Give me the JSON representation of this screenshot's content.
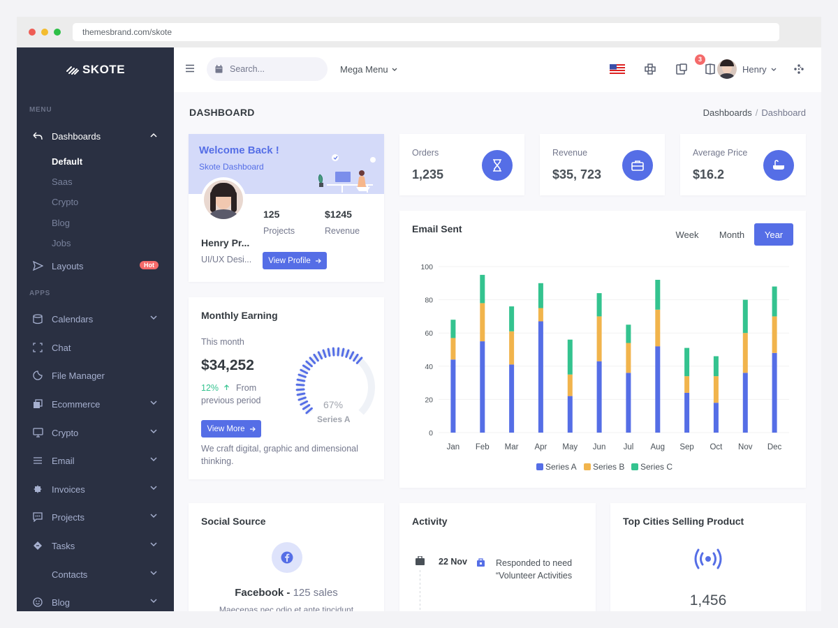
{
  "browser": {
    "url": "themesbrand.com/skote"
  },
  "brand": {
    "name": "SKOTE"
  },
  "sidebar": {
    "menu_title": "MENU",
    "apps_title": "APPS",
    "dashboards": {
      "label": "Dashboards",
      "sub": [
        "Default",
        "Saas",
        "Crypto",
        "Blog",
        "Jobs"
      ]
    },
    "layouts": {
      "label": "Layouts",
      "badge": "Hot"
    },
    "apps": [
      {
        "label": "Calendars",
        "icon": "calendar-icon"
      },
      {
        "label": "Chat",
        "icon": "chat-icon"
      },
      {
        "label": "File Manager",
        "icon": "file-manager-icon"
      },
      {
        "label": "Ecommerce",
        "icon": "store-icon"
      },
      {
        "label": "Crypto",
        "icon": "bitcoin-icon"
      },
      {
        "label": "Email",
        "icon": "email-icon"
      },
      {
        "label": "Invoices",
        "icon": "invoice-icon"
      },
      {
        "label": "Projects",
        "icon": "projects-icon"
      },
      {
        "label": "Tasks",
        "icon": "tasks-icon"
      },
      {
        "label": "Contacts",
        "icon": "contacts-icon"
      },
      {
        "label": "Blog",
        "icon": "blog-icon"
      }
    ]
  },
  "topbar": {
    "search_placeholder": "Search...",
    "mega_menu": "Mega Menu",
    "notif_count": "3",
    "user_name": "Henry"
  },
  "page": {
    "title": "DASHBOARD",
    "breadcrumb": [
      "Dashboards",
      "Dashboard"
    ]
  },
  "welcome": {
    "title": "Welcome Back !",
    "subtitle": "Skote Dashboard",
    "name": "Henry Pr...",
    "role": "UI/UX Desi...",
    "projects_value": "125",
    "projects_label": "Projects",
    "revenue_value": "$1245",
    "revenue_label": "Revenue",
    "button": "View Profile"
  },
  "stats": [
    {
      "label": "Orders",
      "value": "1,235",
      "icon": "hourglass-icon"
    },
    {
      "label": "Revenue",
      "value": "$35, 723",
      "icon": "briefcase-icon"
    },
    {
      "label": "Average Price",
      "value": "$16.2",
      "icon": "price-tag-icon"
    }
  ],
  "earning": {
    "title": "Monthly Earning",
    "period": "This month",
    "value": "$34,252",
    "pct": "12%",
    "from_text": "From previous period",
    "gauge_value": "67%",
    "gauge_fraction": 0.67,
    "gauge_label": "Series A",
    "button": "View More",
    "desc": "We craft digital, graphic and dimensional thinking."
  },
  "email": {
    "title": "Email Sent",
    "periods": [
      "Week",
      "Month",
      "Year"
    ],
    "active_period": "Year"
  },
  "chart_data": {
    "type": "bar",
    "stacked": true,
    "categories": [
      "Jan",
      "Feb",
      "Mar",
      "Apr",
      "May",
      "Jun",
      "Jul",
      "Aug",
      "Sep",
      "Oct",
      "Nov",
      "Dec"
    ],
    "series": [
      {
        "name": "Series A",
        "color": "#556ee6",
        "values": [
          44,
          55,
          41,
          67,
          22,
          43,
          36,
          52,
          24,
          18,
          36,
          48
        ]
      },
      {
        "name": "Series B",
        "color": "#f1b44c",
        "values": [
          13,
          23,
          20,
          8,
          13,
          27,
          18,
          22,
          10,
          16,
          24,
          22
        ]
      },
      {
        "name": "Series C",
        "color": "#34c38f",
        "values": [
          11,
          17,
          15,
          15,
          21,
          14,
          11,
          18,
          17,
          12,
          20,
          18
        ]
      }
    ],
    "yticks": [
      "0",
      "20",
      "40",
      "60",
      "80",
      "100"
    ],
    "ylim": [
      0,
      100
    ],
    "legend_position": "bottom-center",
    "grid": true
  },
  "social": {
    "title": "Social Source",
    "network": "Facebook",
    "sales": "125 sales",
    "desc": "Maecenas nec odio et ante tincidunt"
  },
  "activity": {
    "title": "Activity",
    "date": "22 Nov",
    "text": "Responded to need “Volunteer Activities"
  },
  "cities": {
    "title": "Top Cities Selling Product",
    "value": "1,456"
  }
}
